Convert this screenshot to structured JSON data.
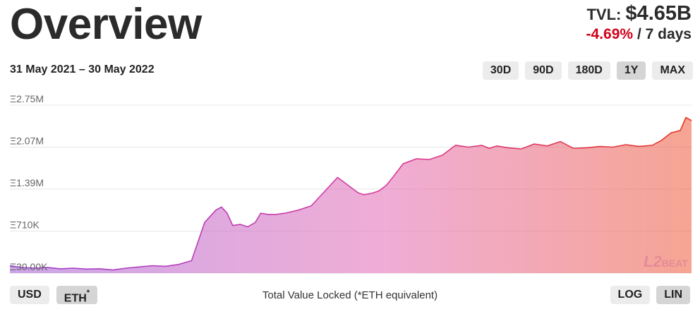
{
  "header": {
    "title": "Overview",
    "tvl_label": "TVL:",
    "tvl_value": "$4.65B",
    "change": "-4.69%",
    "change_period": "/ 7 days"
  },
  "date_range": "31 May 2021 – 30 May 2022",
  "range_buttons": [
    {
      "label": "30D",
      "active": false
    },
    {
      "label": "90D",
      "active": false
    },
    {
      "label": "180D",
      "active": false
    },
    {
      "label": "1Y",
      "active": true
    },
    {
      "label": "MAX",
      "active": false
    }
  ],
  "currency_buttons": {
    "usd": "USD",
    "eth": "ETH",
    "eth_mark": "*"
  },
  "caption": "Total Value Locked (*ETH equivalent)",
  "scale_buttons": {
    "log": "LOG",
    "lin": "LIN"
  },
  "logo": {
    "digits": "L2",
    "text": "BEAT"
  },
  "colors": {
    "gradient_start": "#a25bd6",
    "gradient_mid": "#e36ab4",
    "gradient_end": "#e85025",
    "grid": "#e6e6e6",
    "negative": "#d0021b"
  },
  "chart_data": {
    "type": "area",
    "title": "",
    "xlabel": "",
    "ylabel": "",
    "x_range": [
      "2021-05-31",
      "2022-05-30"
    ],
    "y_tick_labels": [
      "Ξ30.00K",
      "Ξ710K",
      "Ξ1.39M",
      "Ξ2.07M",
      "Ξ2.75M"
    ],
    "y_ticks": [
      30000,
      710000,
      1390000,
      2070000,
      2750000
    ],
    "ylim": [
      30000,
      2750000
    ],
    "grid": true,
    "series": [
      {
        "x": [
          "2021-05-31",
          "2021-06-06",
          "2021-06-13",
          "2021-06-20",
          "2021-06-27",
          "2021-07-04",
          "2021-07-11",
          "2021-07-18",
          "2021-07-25",
          "2021-08-01",
          "2021-08-08",
          "2021-08-15",
          "2021-08-22",
          "2021-08-29",
          "2021-09-05",
          "2021-09-12",
          "2021-09-18",
          "2021-09-21",
          "2021-09-24",
          "2021-09-27",
          "2021-10-01",
          "2021-10-05",
          "2021-10-09",
          "2021-10-12",
          "2021-10-16",
          "2021-10-20",
          "2021-10-25",
          "2021-11-01",
          "2021-11-08",
          "2021-11-15",
          "2021-11-22",
          "2021-11-29",
          "2021-12-03",
          "2021-12-06",
          "2021-12-10",
          "2021-12-14",
          "2021-12-18",
          "2021-12-22",
          "2021-12-27",
          "2022-01-03",
          "2022-01-10",
          "2022-01-17",
          "2022-01-24",
          "2022-01-31",
          "2022-02-07",
          "2022-02-11",
          "2022-02-15",
          "2022-02-21",
          "2022-02-28",
          "2022-03-07",
          "2022-03-14",
          "2022-03-21",
          "2022-03-28",
          "2022-04-04",
          "2022-04-11",
          "2022-04-18",
          "2022-04-25",
          "2022-05-02",
          "2022-05-09",
          "2022-05-14",
          "2022-05-19",
          "2022-05-24",
          "2022-05-27",
          "2022-05-30"
        ],
        "values": [
          150000,
          120000,
          110000,
          120000,
          100000,
          110000,
          95000,
          100000,
          80000,
          110000,
          130000,
          150000,
          140000,
          170000,
          230000,
          850000,
          1050000,
          1100000,
          1000000,
          800000,
          820000,
          780000,
          850000,
          1000000,
          980000,
          980000,
          1000000,
          1050000,
          1120000,
          1350000,
          1580000,
          1420000,
          1330000,
          1300000,
          1320000,
          1360000,
          1450000,
          1600000,
          1800000,
          1880000,
          1870000,
          1940000,
          2100000,
          2070000,
          2100000,
          2050000,
          2090000,
          2060000,
          2040000,
          2120000,
          2090000,
          2160000,
          2050000,
          2060000,
          2080000,
          2070000,
          2110000,
          2080000,
          2100000,
          2180000,
          2300000,
          2340000,
          2550000,
          2500000
        ]
      }
    ]
  }
}
